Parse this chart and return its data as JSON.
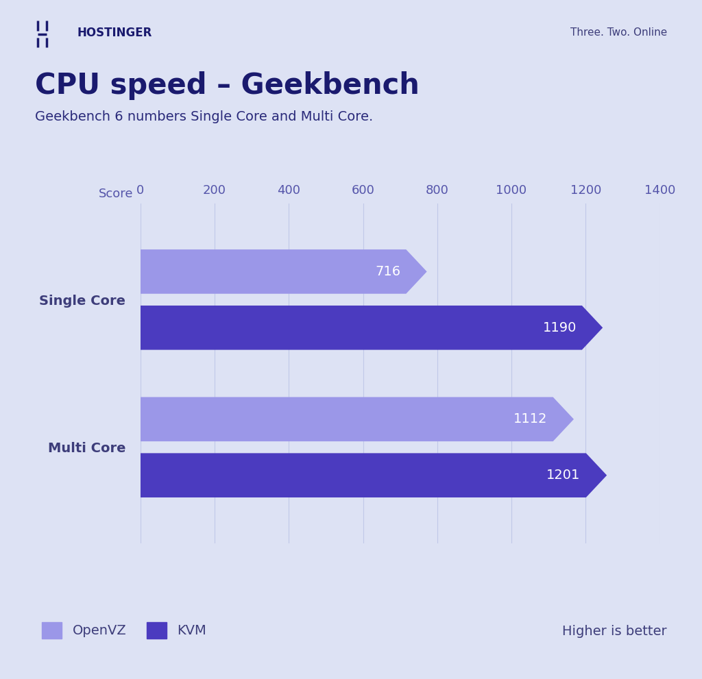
{
  "title": "CPU speed – Geekbench",
  "subtitle": "Geekbench 6 numbers Single Core and Multi Core.",
  "score_label": "Score",
  "background_color": "#dde2f4",
  "categories": [
    "Single Core",
    "Multi Core"
  ],
  "openvz_values": [
    716,
    1112
  ],
  "kvm_values": [
    1190,
    1201
  ],
  "openvz_color": "#9b97e8",
  "kvm_color": "#4b3bbf",
  "xlim": [
    0,
    1400
  ],
  "xticks": [
    0,
    200,
    400,
    600,
    800,
    1000,
    1200,
    1400
  ],
  "title_color": "#1a1a6e",
  "subtitle_color": "#2a2a7a",
  "axis_label_color": "#3d3d7a",
  "tick_label_color": "#5555aa",
  "grid_color": "#c0c8e8",
  "label_color_white": "#ffffff",
  "legend_openvz": "OpenVZ",
  "legend_kvm": "KVM",
  "higher_is_better": "Higher is better",
  "hostinger_text": "Three. Two. Online",
  "title_fontsize": 30,
  "subtitle_fontsize": 14,
  "bar_label_fontsize": 14,
  "legend_fontsize": 14,
  "tick_fontsize": 13,
  "cat_label_fontsize": 14
}
